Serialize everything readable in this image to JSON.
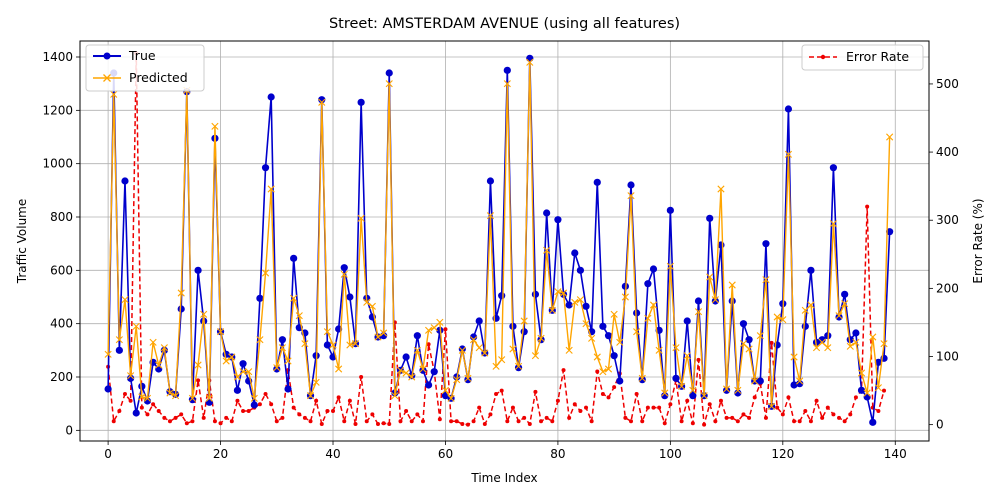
{
  "chart_data": {
    "type": "line",
    "title": "Street: AMSTERDAM AVENUE (using all features)",
    "xlabel": "Time Index",
    "ylabel": "Traffic Volume",
    "y2label": "Error Rate (%)",
    "xlim": [
      -5,
      146
    ],
    "ylim": [
      -40,
      1460
    ],
    "y2lim": [
      -24,
      563
    ],
    "xticks": [
      0,
      20,
      40,
      60,
      80,
      100,
      120,
      140
    ],
    "yticks": [
      0,
      200,
      400,
      600,
      800,
      1000,
      1200,
      1400
    ],
    "y2ticks": [
      0,
      100,
      200,
      300,
      400,
      500
    ],
    "grid": true,
    "legend_left": "top-left",
    "legend_right": "top-right",
    "colors": {
      "true": "#0000cc",
      "predicted": "#ffa500",
      "error": "#ee0000",
      "grid": "#b0b0b0"
    },
    "series": [
      {
        "name": "True",
        "axis": "left",
        "values": [
          155,
          1340,
          300,
          935,
          195,
          65,
          165,
          110,
          255,
          230,
          300,
          145,
          135,
          455,
          1270,
          115,
          600,
          410,
          105,
          1095,
          370,
          285,
          275,
          150,
          250,
          185,
          95,
          495,
          985,
          1250,
          230,
          340,
          155,
          645,
          385,
          365,
          130,
          280,
          1240,
          320,
          275,
          380,
          610,
          500,
          325,
          1230,
          495,
          425,
          350,
          355,
          1340,
          140,
          225,
          275,
          205,
          355,
          225,
          170,
          220,
          375,
          130,
          120,
          200,
          305,
          190,
          350,
          410,
          290,
          935,
          420,
          505,
          1350,
          390,
          235,
          370,
          1395,
          510,
          340,
          815,
          450,
          790,
          510,
          470,
          665,
          600,
          465,
          370,
          930,
          390,
          355,
          280,
          185,
          540,
          920,
          440,
          190,
          550,
          605,
          375,
          130,
          825,
          195,
          165,
          410,
          130,
          485,
          130,
          795,
          485,
          695,
          150,
          485,
          140,
          400,
          340,
          185,
          185,
          700,
          90,
          320,
          475,
          1205,
          170,
          175,
          390,
          600,
          330,
          340,
          355,
          985,
          425,
          510,
          340,
          365,
          150,
          125,
          30,
          255,
          270,
          745
        ]
      },
      {
        "name": "Predicted",
        "axis": "left",
        "values": [
          285,
          1260,
          340,
          490,
          205,
          390,
          125,
          120,
          330,
          245,
          310,
          140,
          130,
          515,
          1275,
          120,
          245,
          435,
          120,
          1140,
          370,
          260,
          275,
          200,
          220,
          220,
          120,
          340,
          590,
          905,
          235,
          310,
          260,
          495,
          430,
          325,
          130,
          180,
          1230,
          370,
          320,
          230,
          585,
          320,
          325,
          795,
          480,
          465,
          350,
          365,
          1300,
          130,
          225,
          215,
          200,
          300,
          230,
          375,
          385,
          405,
          150,
          120,
          190,
          300,
          195,
          340,
          310,
          290,
          805,
          240,
          265,
          1300,
          305,
          240,
          410,
          1380,
          280,
          345,
          675,
          450,
          520,
          515,
          300,
          480,
          490,
          400,
          345,
          275,
          220,
          230,
          435,
          330,
          500,
          880,
          370,
          195,
          420,
          470,
          300,
          140,
          615,
          310,
          165,
          280,
          150,
          445,
          130,
          575,
          490,
          905,
          155,
          545,
          150,
          325,
          305,
          185,
          355,
          565,
          90,
          425,
          415,
          1035,
          275,
          185,
          450,
          470,
          310,
          330,
          310,
          775,
          430,
          475,
          315,
          330,
          215,
          140,
          350,
          160,
          325,
          1100
        ]
      },
      {
        "name": "Error Rate",
        "axis": "right",
        "values": [
          85,
          5,
          20,
          45,
          35,
          545,
          25,
          15,
          30,
          20,
          10,
          5,
          10,
          15,
          2,
          5,
          65,
          10,
          65,
          5,
          2,
          10,
          5,
          35,
          20,
          20,
          25,
          30,
          45,
          30,
          5,
          10,
          80,
          25,
          15,
          10,
          5,
          35,
          1,
          20,
          20,
          40,
          5,
          35,
          1,
          70,
          5,
          15,
          1,
          2,
          1,
          150,
          5,
          20,
          5,
          15,
          5,
          118,
          78,
          8,
          140,
          5,
          5,
          1,
          0,
          5,
          25,
          1,
          15,
          45,
          50,
          5,
          25,
          5,
          10,
          1,
          48,
          5,
          10,
          5,
          35,
          80,
          10,
          30,
          20,
          25,
          5,
          78,
          45,
          40,
          55,
          75,
          10,
          5,
          45,
          5,
          25,
          25,
          25,
          2,
          30,
          65,
          5,
          35,
          2,
          95,
          0,
          30,
          5,
          35,
          10,
          10,
          5,
          15,
          10,
          40,
          60,
          10,
          120,
          25,
          15,
          40,
          5,
          5,
          20,
          5,
          35,
          10,
          25,
          15,
          10,
          5,
          15,
          40,
          50,
          320,
          25,
          20,
          50
        ]
      }
    ]
  }
}
